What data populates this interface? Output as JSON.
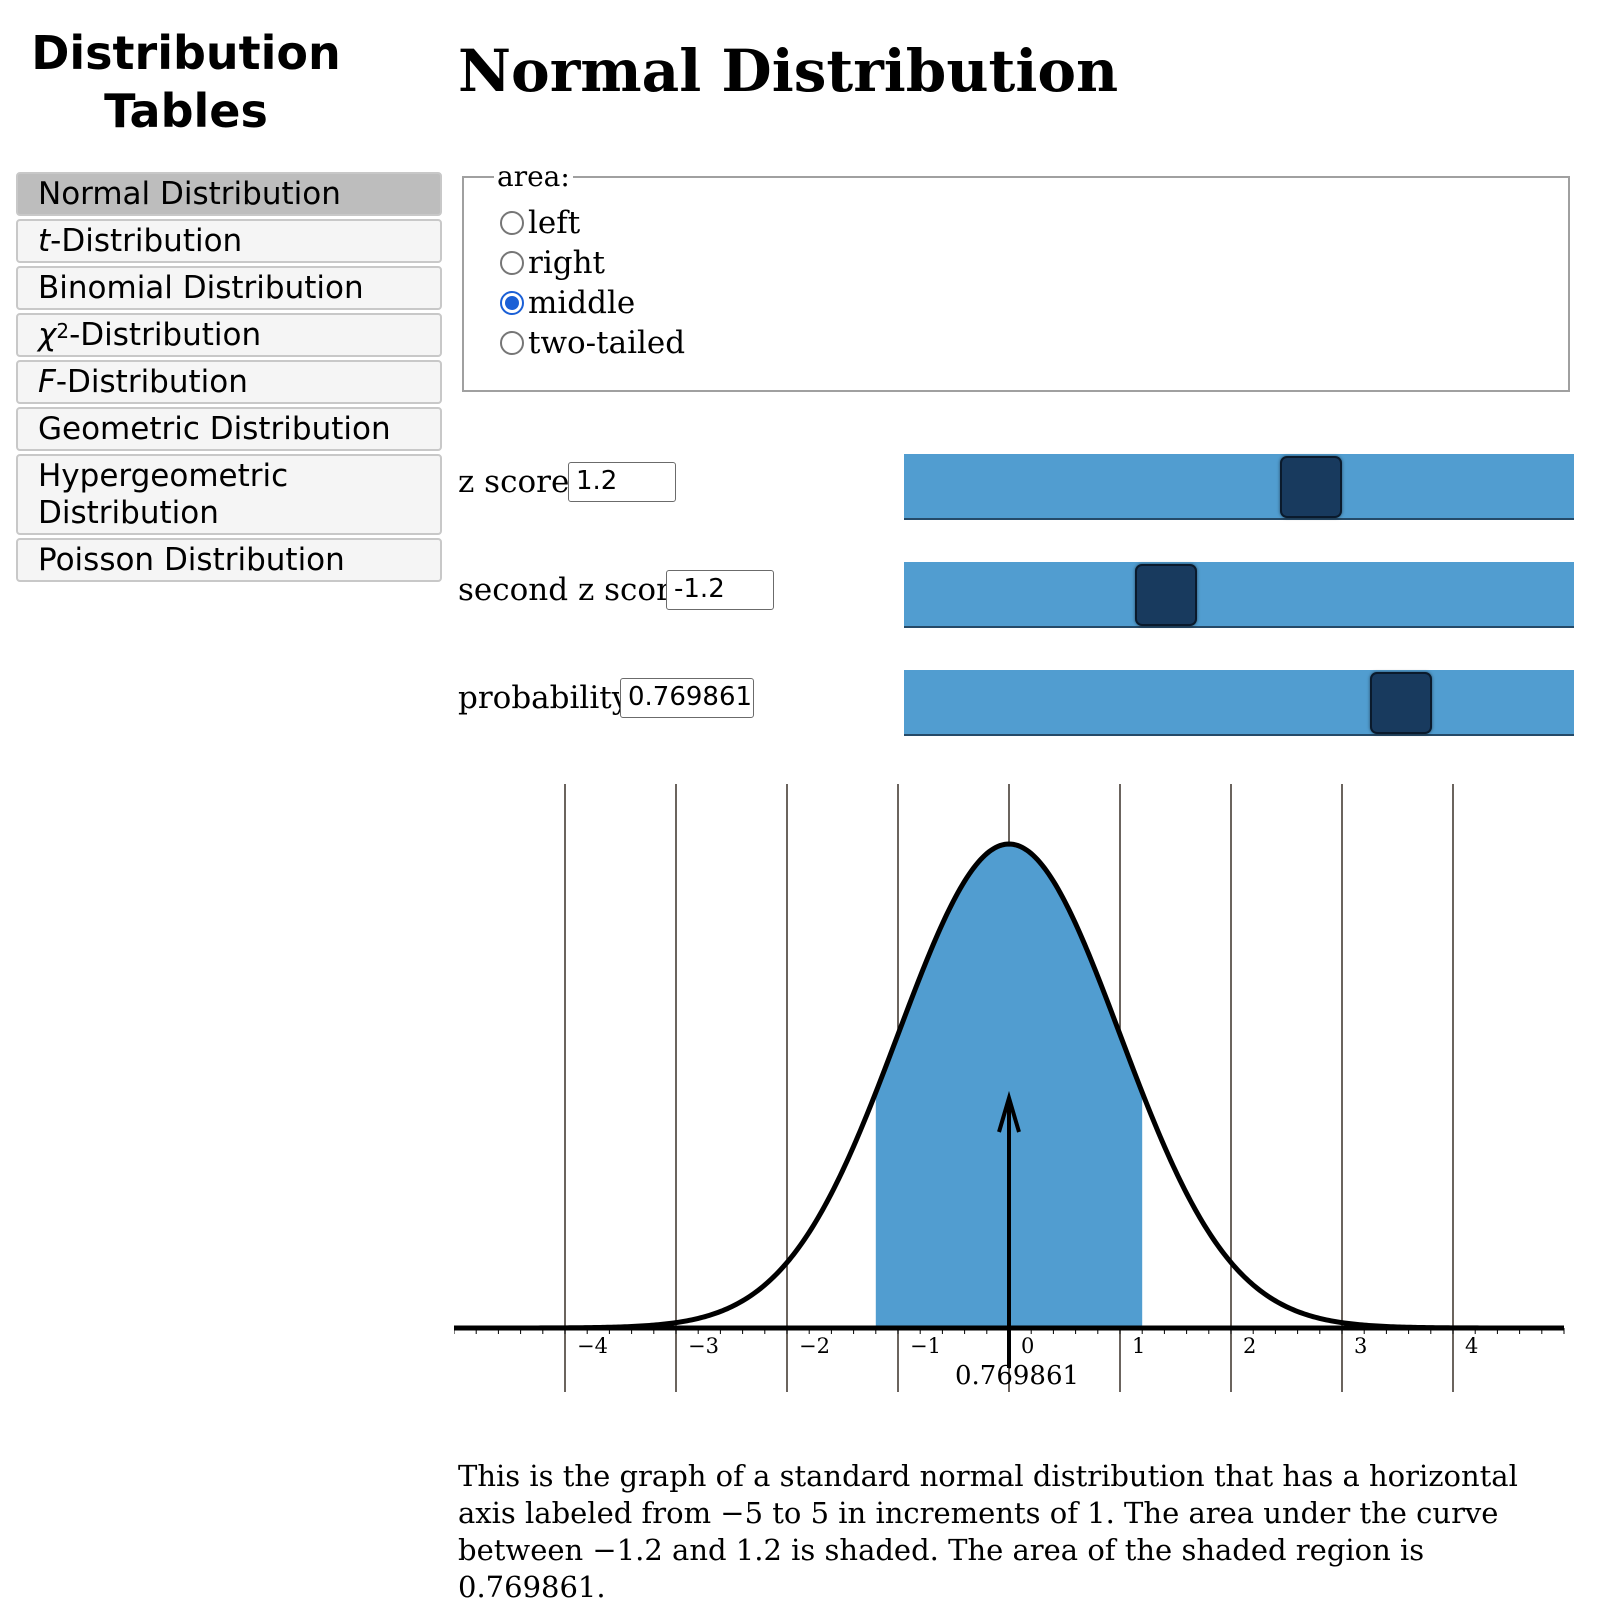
{
  "sidebar": {
    "title": "Distribution Tables",
    "items": [
      {
        "label": "Normal Distribution",
        "active": true
      },
      {
        "italic_prefix": "t",
        "label": "-Distribution"
      },
      {
        "label": "Binomial Distribution"
      },
      {
        "italic_prefix": "χ",
        "sup": "2",
        "label": "-Distribution"
      },
      {
        "italic_prefix": "F",
        "label": "-Distribution"
      },
      {
        "label": "Geometric Distribution"
      },
      {
        "label": "Hypergeometric Distribution"
      },
      {
        "label": "Poisson Distribution"
      }
    ]
  },
  "main": {
    "title": "Normal Distribution",
    "area": {
      "legend": "area:",
      "options": [
        "left",
        "right",
        "middle",
        "two-tailed"
      ],
      "selected": "middle"
    },
    "controls": {
      "z_label": "z score",
      "z_value": "1.2",
      "z2_label": "second z score",
      "z2_value": "-1.2",
      "prob_label": "probability",
      "prob_value": "0.769861"
    },
    "sliders": {
      "z_fraction": 0.608,
      "z2_fraction": 0.391,
      "prob_fraction": 0.742
    },
    "description": "This is the graph of a standard normal distribution that has a horizontal axis labeled from −5 to 5 in increments of 1. The area under the curve between −1.2 and 1.2 is shaded. The area of the shaded region is 0.769861."
  },
  "colors": {
    "shade": "#519dd0",
    "thumb": "#183a5e",
    "radio_checked": "#1a5fd6"
  },
  "chart_data": {
    "type": "area",
    "title": "",
    "xlabel": "",
    "ylabel": "",
    "distribution": "standard normal",
    "mean": 0,
    "sd": 1,
    "xlim": [
      -5,
      5
    ],
    "tick_values": [
      -4,
      -3,
      -2,
      -1,
      0,
      1,
      2,
      3,
      4
    ],
    "tick_labels": [
      "−4",
      "−3",
      "−2",
      "−1",
      "0",
      "1",
      "2",
      "3",
      "4"
    ],
    "shaded_from": -1.2,
    "shaded_to": 1.2,
    "area_label": "0.769861",
    "grid": true
  }
}
